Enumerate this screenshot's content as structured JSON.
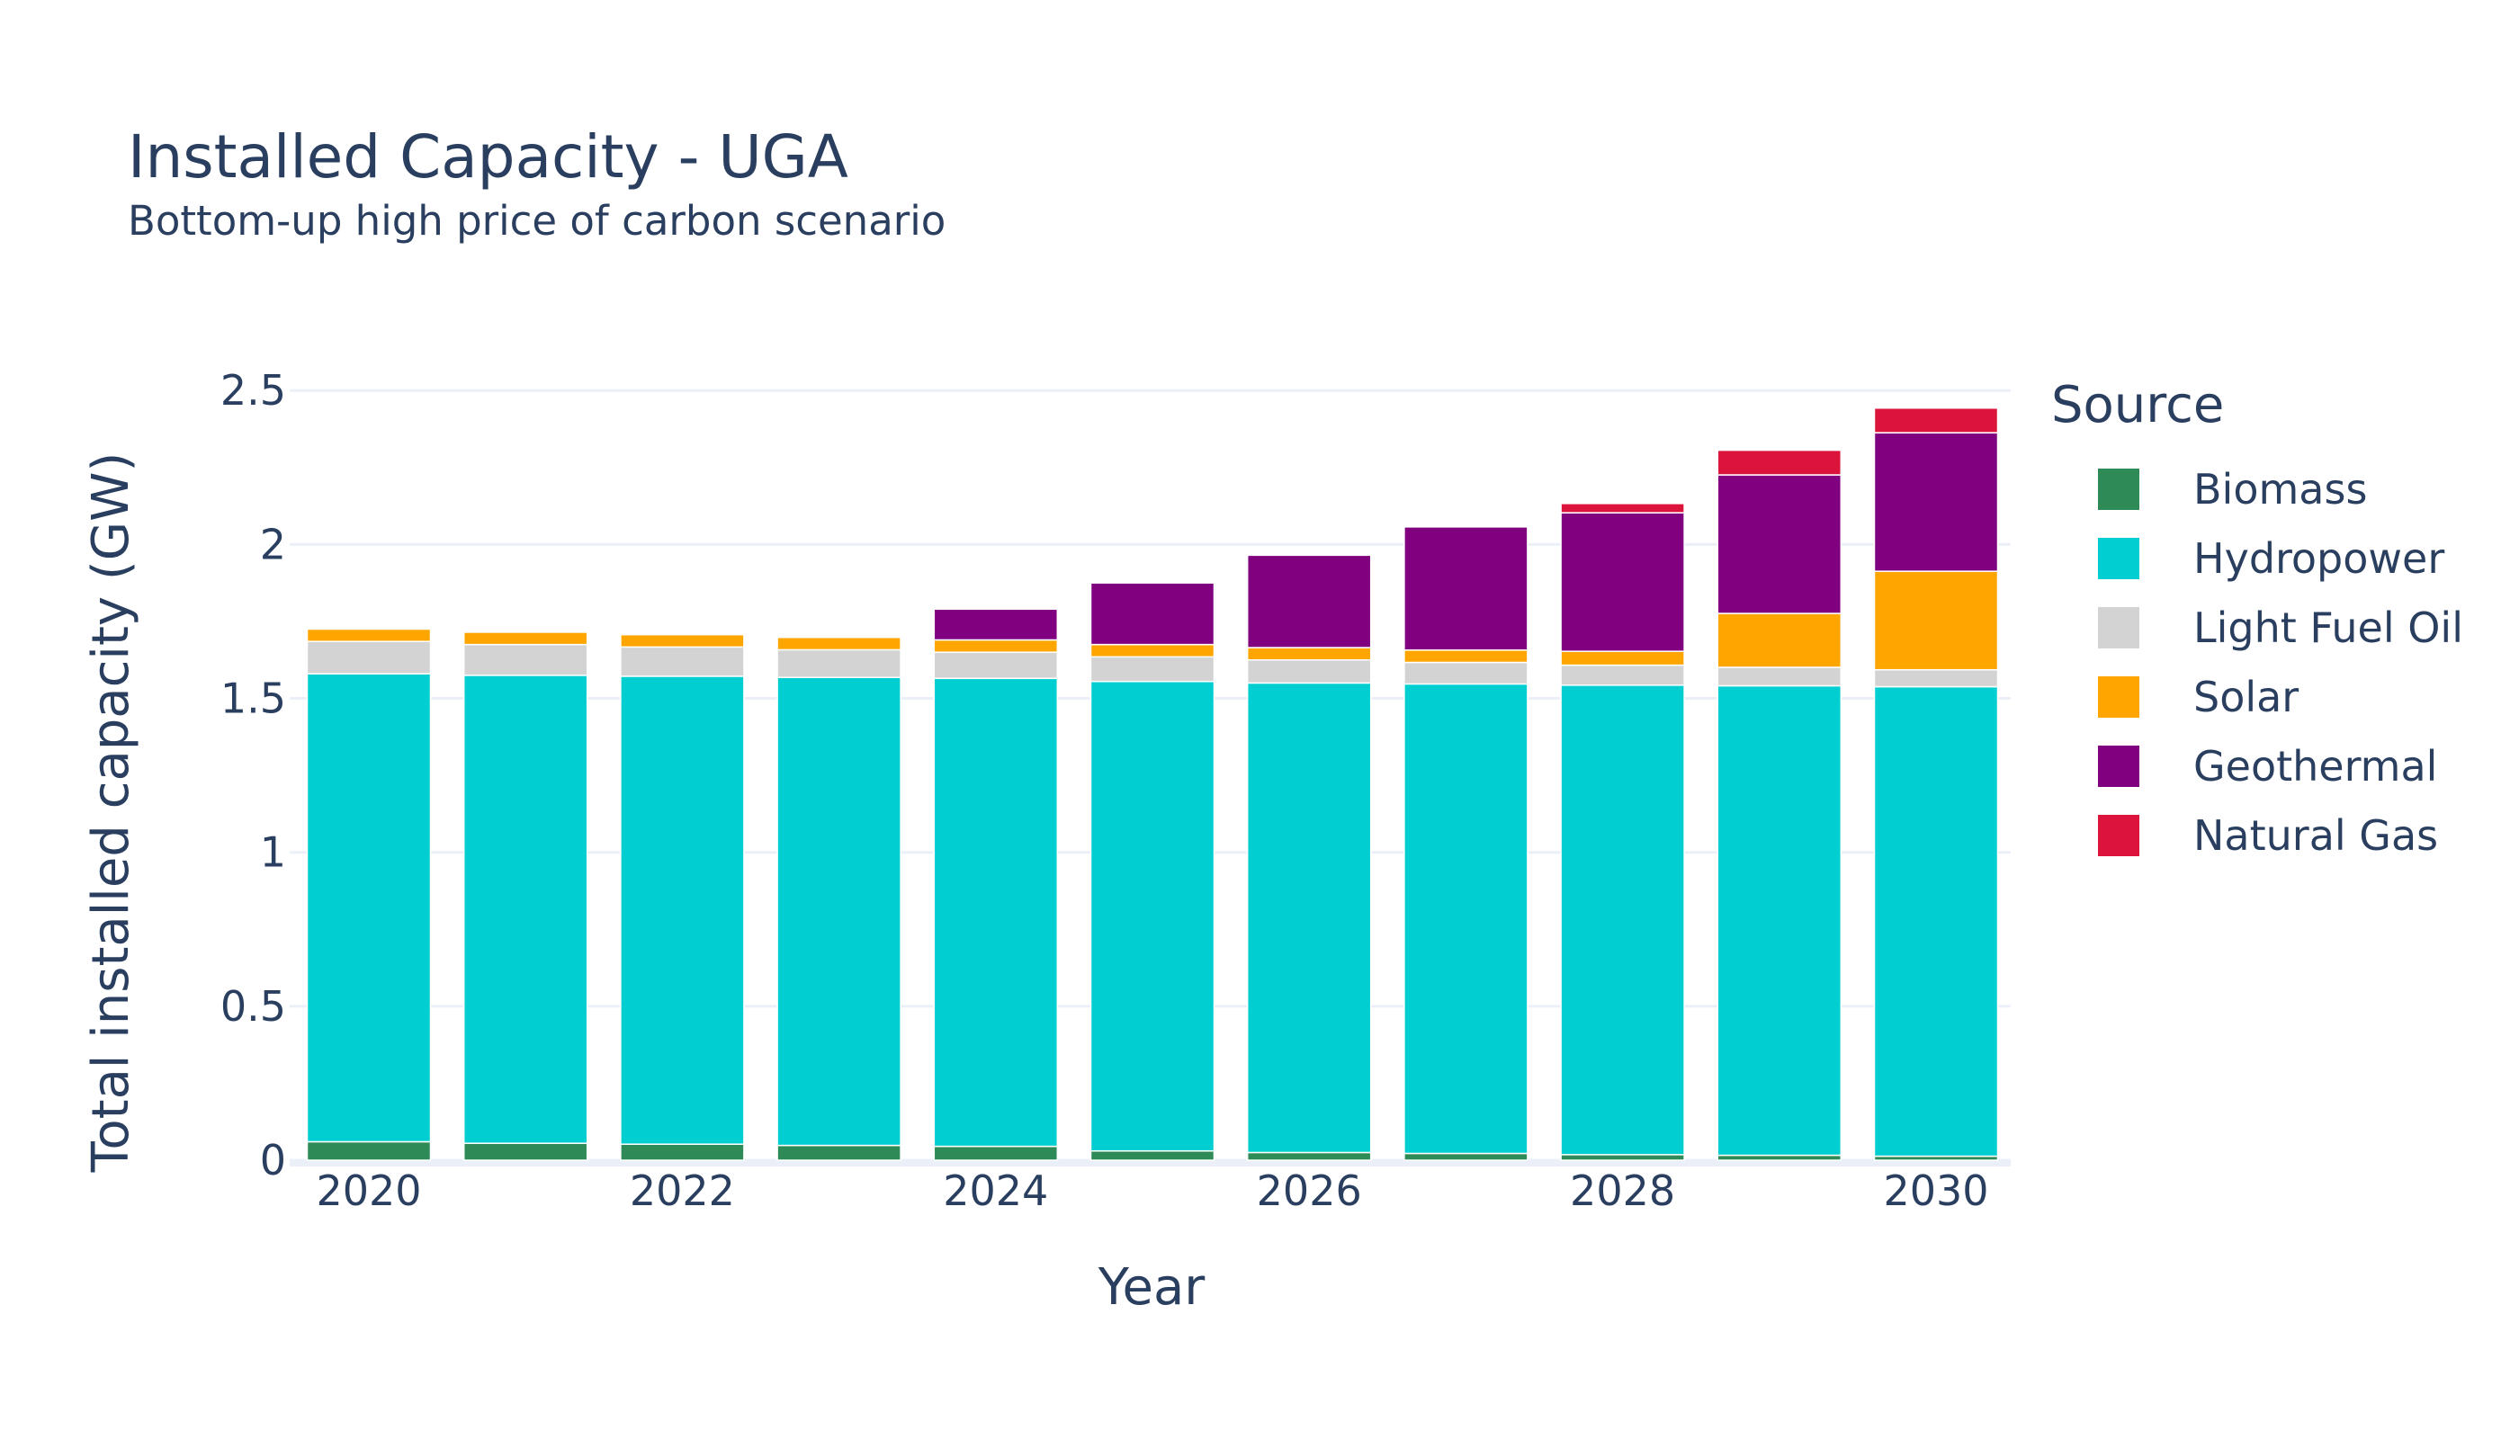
{
  "chart_data": {
    "type": "bar",
    "barmode": "stack",
    "title": "Installed Capacity - UGA",
    "subtitle": "Bottom-up high price of carbon scenario",
    "xlabel": "Year",
    "ylabel": "Total installed capacity (GW)",
    "ylim": [
      0,
      2.6
    ],
    "yticks": [
      0,
      0.5,
      1,
      1.5,
      2,
      2.5
    ],
    "ytick_labels": [
      "0",
      "0.5",
      "1",
      "1.5",
      "2",
      "2.5"
    ],
    "xticks": [
      2020,
      2022,
      2024,
      2026,
      2028,
      2030
    ],
    "xtick_labels": [
      "2020",
      "2022",
      "2024",
      "2026",
      "2028",
      "2030"
    ],
    "categories": [
      2020,
      2021,
      2022,
      2023,
      2024,
      2025,
      2026,
      2027,
      2028,
      2029,
      2030
    ],
    "grid": true,
    "legend_title": "Source",
    "legend_position": "right",
    "series": [
      {
        "name": "Biomass",
        "color": "#2e8b57",
        "values": [
          0.06,
          0.055,
          0.052,
          0.048,
          0.045,
          0.03,
          0.025,
          0.022,
          0.018,
          0.016,
          0.013
        ]
      },
      {
        "name": "Hydropower",
        "color": "#00ced1",
        "values": [
          1.52,
          1.52,
          1.52,
          1.52,
          1.52,
          1.525,
          1.525,
          1.525,
          1.525,
          1.525,
          1.525
        ]
      },
      {
        "name": "Light Fuel Oil",
        "color": "#d3d3d3",
        "values": [
          0.105,
          0.1,
          0.095,
          0.09,
          0.085,
          0.08,
          0.075,
          0.07,
          0.065,
          0.06,
          0.055
        ]
      },
      {
        "name": "Solar",
        "color": "#ffa500",
        "values": [
          0.04,
          0.04,
          0.04,
          0.04,
          0.04,
          0.04,
          0.04,
          0.04,
          0.045,
          0.175,
          0.32
        ]
      },
      {
        "name": "Geothermal",
        "color": "#800080",
        "values": [
          0,
          0,
          0,
          0,
          0.1,
          0.2,
          0.3,
          0.4,
          0.45,
          0.45,
          0.45
        ]
      },
      {
        "name": "Natural Gas",
        "color": "#dc143c",
        "values": [
          0,
          0,
          0,
          0,
          0,
          0,
          0,
          0,
          0.03,
          0.08,
          0.08
        ]
      }
    ]
  }
}
